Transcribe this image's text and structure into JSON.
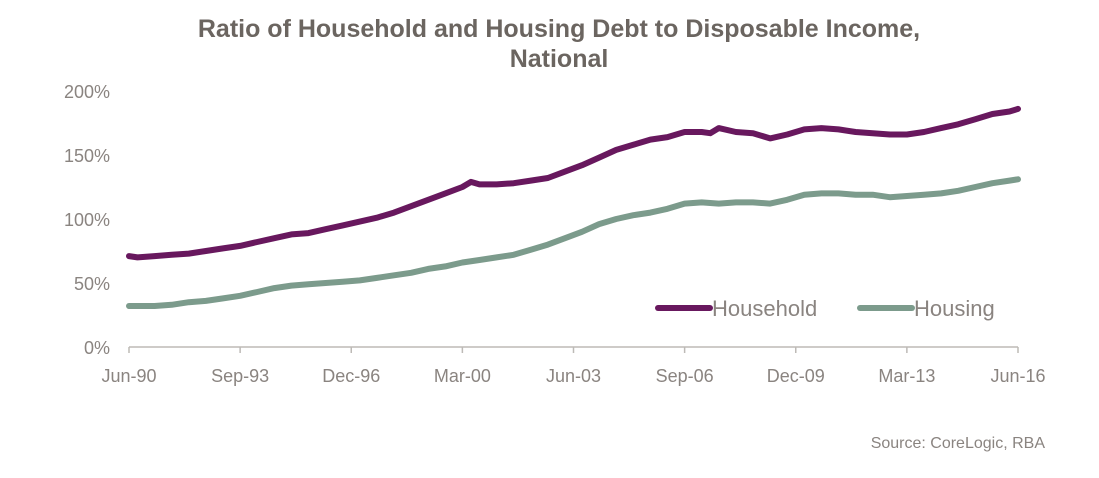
{
  "chart_data": {
    "type": "line",
    "title_line1": "Ratio of Household and Housing Debt to Disposable Income,",
    "title_line2": "National",
    "xlabel": "",
    "ylabel": "",
    "x_ticks": [
      "Jun-90",
      "Sep-93",
      "Dec-96",
      "Mar-00",
      "Jun-03",
      "Sep-06",
      "Dec-09",
      "Mar-13",
      "Jun-16"
    ],
    "y_ticks": [
      "0%",
      "50%",
      "100%",
      "150%",
      "200%"
    ],
    "ylim": [
      0,
      200
    ],
    "xlim": [
      1990.42,
      2016.42
    ],
    "grid": false,
    "legend_position": "bottom-right",
    "series": [
      {
        "name": "Household",
        "color": "#68185e",
        "points": [
          [
            1990.42,
            71
          ],
          [
            1990.67,
            70
          ],
          [
            1991.17,
            71
          ],
          [
            1991.67,
            72
          ],
          [
            1992.17,
            73
          ],
          [
            1992.67,
            75
          ],
          [
            1993.17,
            77
          ],
          [
            1993.67,
            79
          ],
          [
            1994.17,
            82
          ],
          [
            1994.67,
            85
          ],
          [
            1995.17,
            88
          ],
          [
            1995.67,
            89
          ],
          [
            1996.17,
            92
          ],
          [
            1996.67,
            95
          ],
          [
            1997.17,
            98
          ],
          [
            1997.67,
            101
          ],
          [
            1998.17,
            105
          ],
          [
            1998.67,
            110
          ],
          [
            1999.17,
            115
          ],
          [
            1999.67,
            120
          ],
          [
            2000.17,
            125
          ],
          [
            2000.42,
            129
          ],
          [
            2000.67,
            127
          ],
          [
            2001.17,
            127
          ],
          [
            2001.67,
            128
          ],
          [
            2002.17,
            130
          ],
          [
            2002.67,
            132
          ],
          [
            2003.17,
            137
          ],
          [
            2003.67,
            142
          ],
          [
            2004.17,
            148
          ],
          [
            2004.67,
            154
          ],
          [
            2005.17,
            158
          ],
          [
            2005.67,
            162
          ],
          [
            2006.17,
            164
          ],
          [
            2006.67,
            168
          ],
          [
            2007.17,
            168
          ],
          [
            2007.42,
            167
          ],
          [
            2007.67,
            171
          ],
          [
            2008.17,
            168
          ],
          [
            2008.67,
            167
          ],
          [
            2009.17,
            163
          ],
          [
            2009.67,
            166
          ],
          [
            2010.17,
            170
          ],
          [
            2010.67,
            171
          ],
          [
            2011.17,
            170
          ],
          [
            2011.67,
            168
          ],
          [
            2012.17,
            167
          ],
          [
            2012.67,
            166
          ],
          [
            2013.17,
            166
          ],
          [
            2013.67,
            168
          ],
          [
            2014.17,
            171
          ],
          [
            2014.67,
            174
          ],
          [
            2015.17,
            178
          ],
          [
            2015.67,
            182
          ],
          [
            2016.17,
            184
          ],
          [
            2016.42,
            186
          ]
        ]
      },
      {
        "name": "Housing",
        "color": "#7c9b8c",
        "points": [
          [
            1990.42,
            32
          ],
          [
            1991.17,
            32
          ],
          [
            1991.67,
            33
          ],
          [
            1992.17,
            35
          ],
          [
            1992.67,
            36
          ],
          [
            1993.17,
            38
          ],
          [
            1993.67,
            40
          ],
          [
            1994.17,
            43
          ],
          [
            1994.67,
            46
          ],
          [
            1995.17,
            48
          ],
          [
            1995.67,
            49
          ],
          [
            1996.17,
            50
          ],
          [
            1996.67,
            51
          ],
          [
            1997.17,
            52
          ],
          [
            1997.67,
            54
          ],
          [
            1998.17,
            56
          ],
          [
            1998.67,
            58
          ],
          [
            1999.17,
            61
          ],
          [
            1999.67,
            63
          ],
          [
            2000.17,
            66
          ],
          [
            2000.67,
            68
          ],
          [
            2001.17,
            70
          ],
          [
            2001.67,
            72
          ],
          [
            2002.17,
            76
          ],
          [
            2002.67,
            80
          ],
          [
            2003.17,
            85
          ],
          [
            2003.67,
            90
          ],
          [
            2004.17,
            96
          ],
          [
            2004.67,
            100
          ],
          [
            2005.17,
            103
          ],
          [
            2005.67,
            105
          ],
          [
            2006.17,
            108
          ],
          [
            2006.67,
            112
          ],
          [
            2007.17,
            113
          ],
          [
            2007.67,
            112
          ],
          [
            2008.17,
            113
          ],
          [
            2008.67,
            113
          ],
          [
            2009.17,
            112
          ],
          [
            2009.67,
            115
          ],
          [
            2010.17,
            119
          ],
          [
            2010.67,
            120
          ],
          [
            2011.17,
            120
          ],
          [
            2011.67,
            119
          ],
          [
            2012.17,
            119
          ],
          [
            2012.67,
            117
          ],
          [
            2013.17,
            118
          ],
          [
            2013.67,
            119
          ],
          [
            2014.17,
            120
          ],
          [
            2014.67,
            122
          ],
          [
            2015.17,
            125
          ],
          [
            2015.67,
            128
          ],
          [
            2016.17,
            130
          ],
          [
            2016.42,
            131
          ]
        ]
      }
    ]
  },
  "source": "Source: CoreLogic, RBA"
}
